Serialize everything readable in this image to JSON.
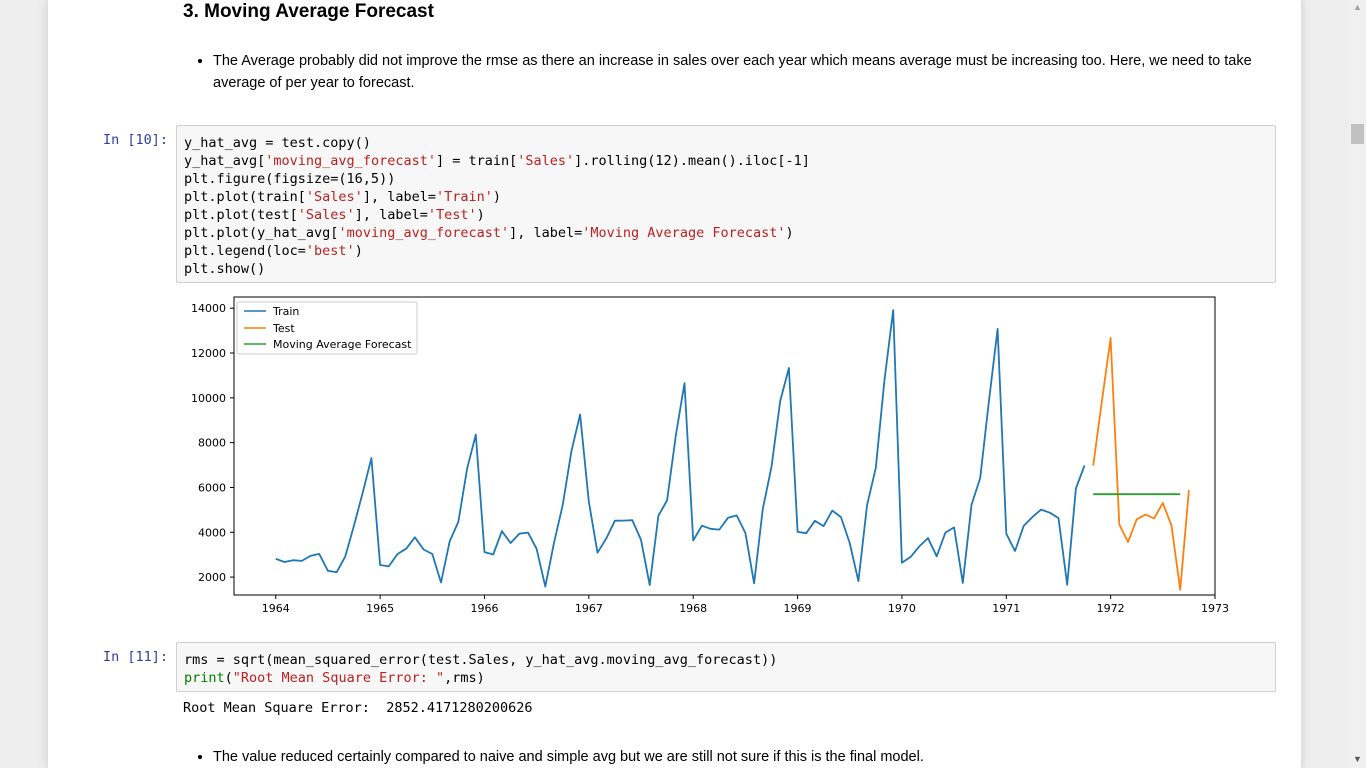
{
  "heading": "3. Moving Average Forecast",
  "bullet_top": "The Average probably did not improve the rmse as there an increase in sales over each year which means average must be increasing too. Here, we need to take average of per year to forecast.",
  "cell10": {
    "prompt": "In [10]:",
    "lines": [
      [
        {
          "t": "y_hat_avg = test.copy()",
          "c": ""
        }
      ],
      [
        {
          "t": "y_hat_avg[",
          "c": ""
        },
        {
          "t": "'moving_avg_forecast'",
          "c": "s"
        },
        {
          "t": "] = train[",
          "c": ""
        },
        {
          "t": "'Sales'",
          "c": "s"
        },
        {
          "t": "].rolling(12).mean().iloc[-1]",
          "c": ""
        }
      ],
      [
        {
          "t": "plt.figure(figsize=(16,5))",
          "c": ""
        }
      ],
      [
        {
          "t": "plt.plot(train[",
          "c": ""
        },
        {
          "t": "'Sales'",
          "c": "s"
        },
        {
          "t": "], label=",
          "c": ""
        },
        {
          "t": "'Train'",
          "c": "s"
        },
        {
          "t": ")",
          "c": ""
        }
      ],
      [
        {
          "t": "plt.plot(test[",
          "c": ""
        },
        {
          "t": "'Sales'",
          "c": "s"
        },
        {
          "t": "], label=",
          "c": ""
        },
        {
          "t": "'Test'",
          "c": "s"
        },
        {
          "t": ")",
          "c": ""
        }
      ],
      [
        {
          "t": "plt.plot(y_hat_avg[",
          "c": ""
        },
        {
          "t": "'moving_avg_forecast'",
          "c": "s"
        },
        {
          "t": "], label=",
          "c": ""
        },
        {
          "t": "'Moving Average Forecast'",
          "c": "s"
        },
        {
          "t": ")",
          "c": ""
        }
      ],
      [
        {
          "t": "plt.legend(loc=",
          "c": ""
        },
        {
          "t": "'best'",
          "c": "s"
        },
        {
          "t": ")",
          "c": ""
        }
      ],
      [
        {
          "t": "plt.show()",
          "c": ""
        }
      ]
    ]
  },
  "cell11": {
    "prompt": "In [11]:",
    "lines": [
      [
        {
          "t": "rms = sqrt(mean_squared_error(test.Sales, y_hat_avg.moving_avg_forecast))",
          "c": ""
        }
      ],
      [
        {
          "t": "print",
          "c": "b"
        },
        {
          "t": "(",
          "c": ""
        },
        {
          "t": "\"Root Mean Square Error: \"",
          "c": "s"
        },
        {
          "t": ",rms)",
          "c": ""
        }
      ]
    ]
  },
  "output11": "Root Mean Square Error:  2852.4171280200626",
  "bullet_bottom": "The value reduced certainly compared to naive and simple avg but we are still not sure if this is the final model.",
  "colors": {
    "train": "#1f77b4",
    "test": "#ff7f0e",
    "forecast": "#2ca02c",
    "prompt": "#303f9f",
    "string": "#ba2121",
    "builtin": "#008000"
  },
  "chart_data": {
    "type": "line",
    "xlim": [
      1963.6,
      1973.0
    ],
    "ylim": [
      1200,
      14500
    ],
    "xticks": [
      1964,
      1965,
      1966,
      1967,
      1968,
      1969,
      1970,
      1971,
      1972,
      1973
    ],
    "yticks": [
      2000,
      4000,
      6000,
      8000,
      10000,
      12000,
      14000
    ],
    "legend_position": "top-left",
    "legend": [
      "Train",
      "Test",
      "Moving Average Forecast"
    ],
    "series": [
      {
        "name": "Train",
        "x_start": 1964.0,
        "x_step": 0.0833333,
        "values": [
          2815,
          2672,
          2755,
          2721,
          2946,
          3036,
          2282,
          2212,
          2922,
          4301,
          5764,
          7312,
          2541,
          2475,
          3031,
          3266,
          3776,
          3230,
          3028,
          1759,
          3595,
          4474,
          6838,
          8357,
          3113,
          3006,
          4047,
          3523,
          3937,
          3986,
          3260,
          1573,
          3528,
          5211,
          7614,
          9254,
          5375,
          3088,
          3718,
          4514,
          4520,
          4539,
          3663,
          1643,
          4739,
          5428,
          8314,
          10651,
          3633,
          4292,
          4154,
          4121,
          4647,
          4753,
          3965,
          1723,
          5048,
          6922,
          9858,
          11331,
          4016,
          3957,
          4510,
          4276,
          4968,
          4677,
          3523,
          1821,
          5222,
          6872,
          10803,
          13916,
          2639,
          2899,
          3370,
          3740,
          2927,
          3986,
          4217,
          1738,
          5221,
          6424,
          9842,
          13076,
          3934,
          3162,
          4286,
          4676,
          5010,
          4874,
          4633,
          1659,
          5951,
          6981
        ]
      },
      {
        "name": "Test",
        "x_start": 1971.8333,
        "x_step": 0.0833333,
        "values": [
          6981,
          9851,
          12670,
          4348,
          3564,
          4577,
          4788,
          4618,
          5312,
          4298,
          1431,
          5877
        ]
      },
      {
        "name": "Moving Average Forecast",
        "x": [
          1971.8333,
          1972.6667
        ],
        "values": [
          5697,
          5697
        ]
      }
    ]
  }
}
